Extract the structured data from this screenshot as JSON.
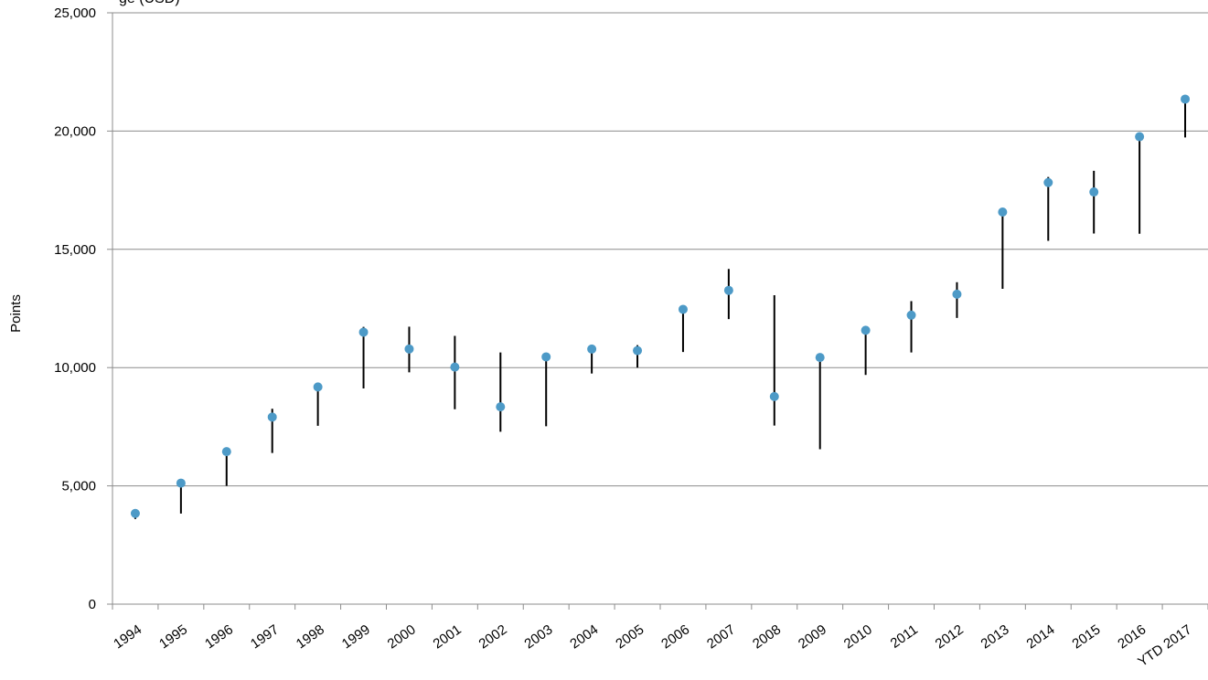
{
  "chart_data": {
    "type": "scatter",
    "title_fragment": "ge (USD)",
    "ylabel": "Points",
    "xlabel": "",
    "ylim": [
      0,
      25000
    ],
    "yticks": [
      0,
      5000,
      10000,
      15000,
      20000,
      25000
    ],
    "ytick_labels": [
      "0",
      "5,000",
      "10,000",
      "15,000",
      "20,000",
      "25,000"
    ],
    "categories": [
      "1994",
      "1995",
      "1996",
      "1997",
      "1998",
      "1999",
      "2000",
      "2001",
      "2002",
      "2003",
      "2004",
      "2005",
      "2006",
      "2007",
      "2008",
      "2009",
      "2010",
      "2011",
      "2012",
      "2013",
      "2014",
      "2015",
      "2016",
      "YTD 2017"
    ],
    "series": [
      {
        "values": [
          3834,
          5117,
          6448,
          7908,
          9181,
          11497,
          10787,
          10022,
          8342,
          10454,
          10783,
          10718,
          12463,
          13265,
          8776,
          10428,
          11578,
          12218,
          13104,
          16577,
          17823,
          17425,
          19763,
          21350
        ]
      }
    ],
    "ranges": {
      "low": [
        3600,
        3830,
        5000,
        6390,
        7540,
        9120,
        9800,
        8240,
        7290,
        7520,
        9750,
        10000,
        10660,
        12050,
        7550,
        6550,
        9690,
        10640,
        12100,
        13330,
        15360,
        15670,
        15660,
        19730
      ],
      "high": [
        3960,
        5210,
        6560,
        8260,
        9370,
        11720,
        11730,
        11340,
        10640,
        10460,
        10860,
        10950,
        12520,
        14170,
        13060,
        10580,
        11590,
        12810,
        13610,
        16590,
        18060,
        18320,
        19770,
        21370
      ]
    },
    "colors": {
      "marker": "#4d9ac7",
      "range": "#000000",
      "grid": "#8c8c8c",
      "axis": "#8c8c8c"
    },
    "grid": true
  }
}
